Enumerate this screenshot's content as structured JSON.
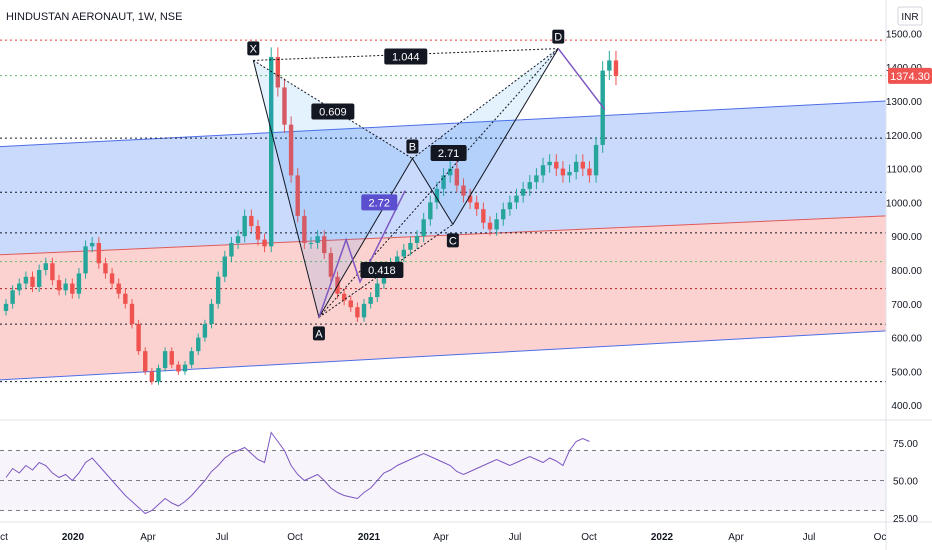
{
  "header": {
    "title": "HINDUSTAN AERONAUT, 1W, NSE",
    "currency": "INR"
  },
  "colors": {
    "up": "#26a69a",
    "down": "#ef5350",
    "channel_upper": "#bfd3fb",
    "channel_lower": "#fbcac9",
    "pattern": "#131722",
    "accent": "#7e57c2",
    "rsi": "#7e57c2",
    "price_badge": "#ef5350"
  },
  "chart_data": [
    {
      "type": "candlestick",
      "title": "HINDUSTAN AERONAUT, 1W, NSE",
      "ylim": [
        380,
        1510
      ],
      "y_ticks": [
        "400.00",
        "500.00",
        "600.00",
        "700.00",
        "800.00",
        "900.00",
        "1000.00",
        "1100.00",
        "1200.00",
        "1300.00",
        "1400.00",
        "1500.00"
      ],
      "x_ticks": [
        "ct",
        "2020",
        "Apr",
        "Jul",
        "Oct",
        "2021",
        "Apr",
        "Jul",
        "Oct",
        "2022",
        "Apr",
        "Jul",
        "Oc"
      ],
      "last_price": "1374.30",
      "closes": [
        700,
        740,
        760,
        780,
        750,
        800,
        820,
        770,
        740,
        760,
        730,
        790,
        870,
        880,
        820,
        790,
        760,
        730,
        700,
        640,
        560,
        500,
        470,
        510,
        560,
        520,
        500,
        520,
        560,
        600,
        640,
        700,
        780,
        840,
        880,
        900,
        960,
        930,
        890,
        870,
        1430,
        1340,
        1230,
        1080,
        960,
        880,
        880,
        900,
        850,
        780,
        730,
        710,
        690,
        660,
        700,
        720,
        760,
        800,
        820,
        840,
        860,
        880,
        900,
        950,
        1000,
        1040,
        1080,
        1100,
        1050,
        1020,
        1000,
        980,
        940,
        920,
        950,
        980,
        1000,
        1020,
        1040,
        1060,
        1080,
        1110,
        1120,
        1100,
        1080,
        1090,
        1120,
        1100,
        1080,
        1170,
        1390,
        1420,
        1374.3
      ],
      "pattern": {
        "points": [
          {
            "label": "X",
            "value": 1420
          },
          {
            "label": "A",
            "value": 660
          },
          {
            "label": "B",
            "value": 1130
          },
          {
            "label": "C",
            "value": 935
          },
          {
            "label": "D",
            "value": 1455
          }
        ],
        "ratios": [
          "1.044",
          "0.609",
          "2.71",
          "2.72",
          "0.418"
        ]
      },
      "horizontal_levels": [
        1480,
        1375,
        1190,
        1030,
        910,
        825,
        745,
        640,
        470
      ],
      "channel": {
        "upper": [
          1165,
          1300
        ],
        "middle": [
          845,
          960
        ],
        "lower": [
          475,
          620
        ]
      },
      "projection": [
        1455,
        1275
      ]
    },
    {
      "type": "line",
      "title": "",
      "ylim": [
        25,
        85
      ],
      "y_ticks": [
        "25.00",
        "50.00",
        "75.00"
      ],
      "levels": [
        30,
        50,
        70
      ],
      "values": [
        52,
        58,
        55,
        60,
        57,
        62,
        60,
        55,
        52,
        54,
        50,
        55,
        62,
        65,
        60,
        55,
        50,
        45,
        40,
        36,
        32,
        28,
        30,
        34,
        38,
        35,
        33,
        36,
        40,
        45,
        50,
        56,
        60,
        65,
        68,
        70,
        72,
        68,
        64,
        62,
        82,
        76,
        70,
        60,
        54,
        50,
        52,
        54,
        50,
        45,
        42,
        40,
        39,
        38,
        42,
        45,
        50,
        55,
        57,
        60,
        62,
        64,
        66,
        68,
        66,
        64,
        62,
        60,
        56,
        54,
        56,
        58,
        60,
        62,
        64,
        62,
        60,
        62,
        64,
        66,
        64,
        62,
        65,
        63,
        60,
        70,
        76,
        78,
        76
      ]
    }
  ]
}
